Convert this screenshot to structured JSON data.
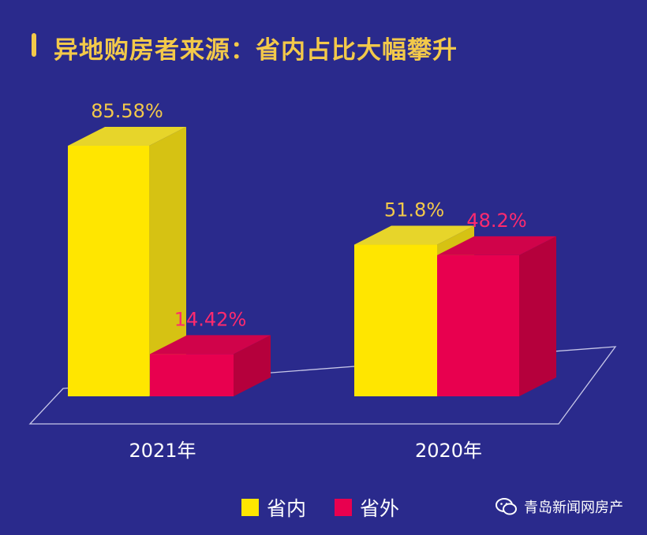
{
  "title": "异地购房者来源：省内占比大幅攀升",
  "brand": {
    "name": "青岛新闻网房产",
    "icon": "wechat-icon"
  },
  "colors": {
    "background": "#2a2a8c",
    "yellow_front": "#ffe600",
    "yellow_side": "#d6c213",
    "yellow_top": "#e7d52a",
    "red_front": "#e8004f",
    "red_side": "#b5003c",
    "red_top": "#d0034a",
    "yellow_label": "#f3c94a",
    "red_label": "#ff2a6e"
  },
  "chart_data": {
    "type": "bar",
    "categories": [
      "2021年",
      "2020年"
    ],
    "series": [
      {
        "name": "省内",
        "values": [
          85.58,
          51.8
        ],
        "labels": [
          "85.58%",
          "51.8%"
        ]
      },
      {
        "name": "省外",
        "values": [
          14.42,
          48.2
        ],
        "labels": [
          "14.42%",
          "48.2%"
        ]
      }
    ],
    "ylim": [
      0,
      100
    ],
    "unit": "%",
    "legend_position": "bottom-center"
  },
  "legend": {
    "items": [
      "省内",
      "省外"
    ]
  }
}
